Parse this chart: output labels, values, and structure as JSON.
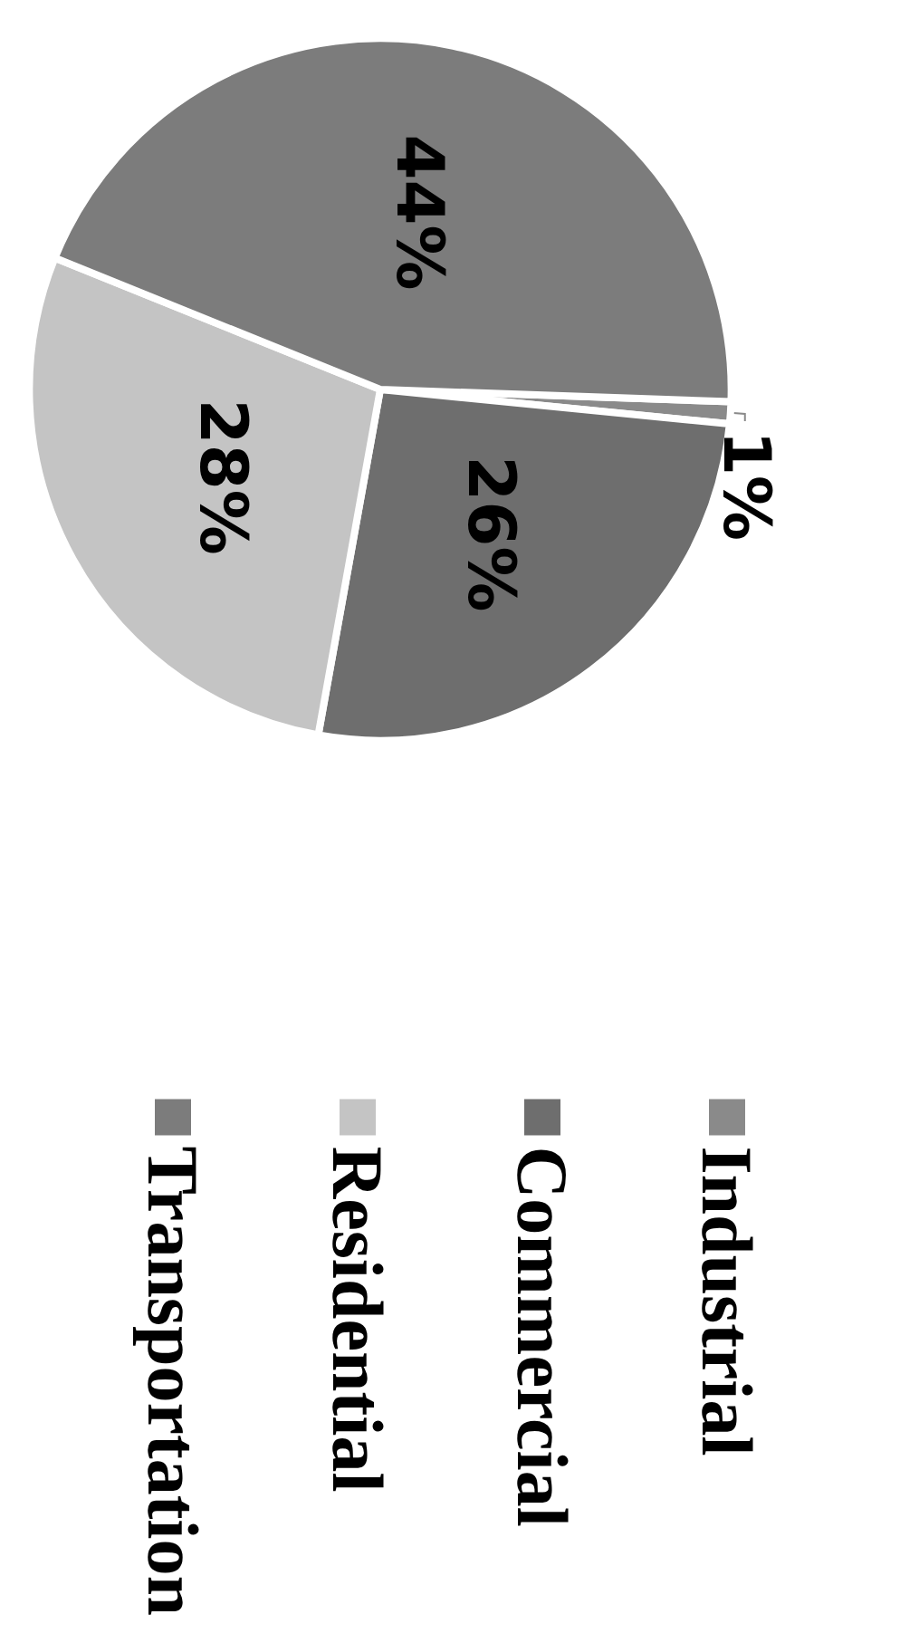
{
  "chart_data": {
    "type": "pie",
    "categories": [
      "Industrial",
      "Commercial",
      "Residential",
      "Transportation"
    ],
    "values": [
      1,
      26,
      28,
      44
    ],
    "colors": [
      "#8a8a8a",
      "#6e6e6e",
      "#c4c4c4",
      "#7c7c7c"
    ],
    "value_labels": [
      "1%",
      "26%",
      "28%",
      "44%"
    ],
    "legend": "right"
  }
}
